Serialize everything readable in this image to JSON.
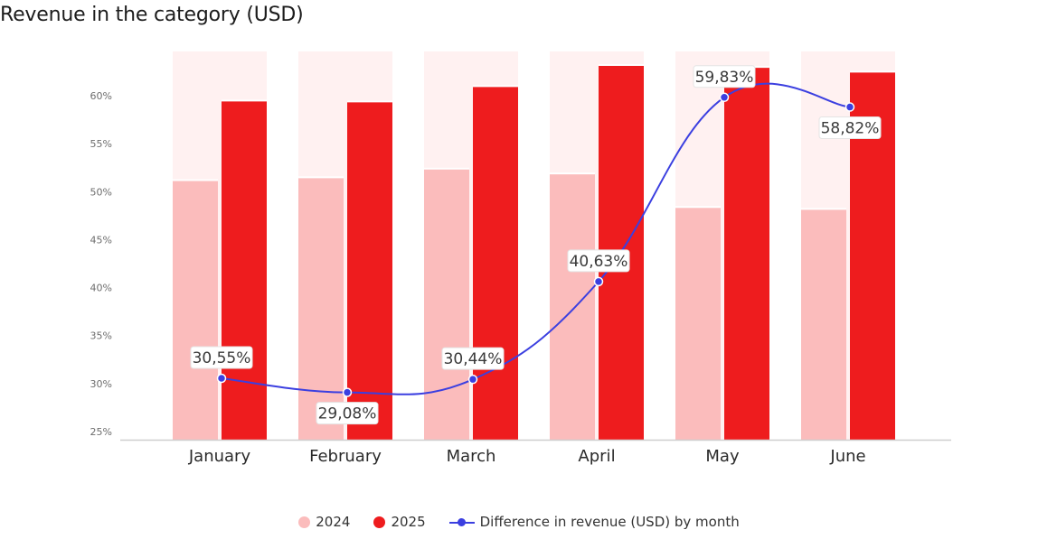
{
  "chart_data": {
    "type": "bar",
    "title": "Revenue in the category (USD)",
    "categories": [
      "January",
      "February",
      "March",
      "April",
      "May",
      "June"
    ],
    "y_ticks": [
      "25%",
      "30%",
      "35%",
      "40%",
      "45%",
      "50%",
      "55%",
      "60%"
    ],
    "ylim": [
      25,
      64
    ],
    "series": [
      {
        "name": "2024",
        "kind": "bar",
        "color": "#fbbcbc",
        "values": [
          51.2,
          51.5,
          52.4,
          51.9,
          48.4,
          48.2
        ]
      },
      {
        "name": "2025",
        "kind": "bar",
        "color": "#ee1c1e",
        "values": [
          59.5,
          59.4,
          61.0,
          63.2,
          63.0,
          62.5
        ]
      },
      {
        "name": "Difference in revenue (USD) by month",
        "kind": "line",
        "color": "#3b3fe0",
        "values": [
          30.55,
          29.08,
          30.44,
          40.63,
          59.83,
          58.82
        ],
        "labels": [
          "30,55%",
          "29,08%",
          "30,44%",
          "40,63%",
          "59,83%",
          "58,82%"
        ]
      }
    ],
    "background_band_color": "#fff1f1",
    "grid": false,
    "legend_position": "bottom"
  },
  "legend": {
    "item1": "2024",
    "item2": "2025",
    "item3": "Difference in revenue (USD) by month"
  }
}
